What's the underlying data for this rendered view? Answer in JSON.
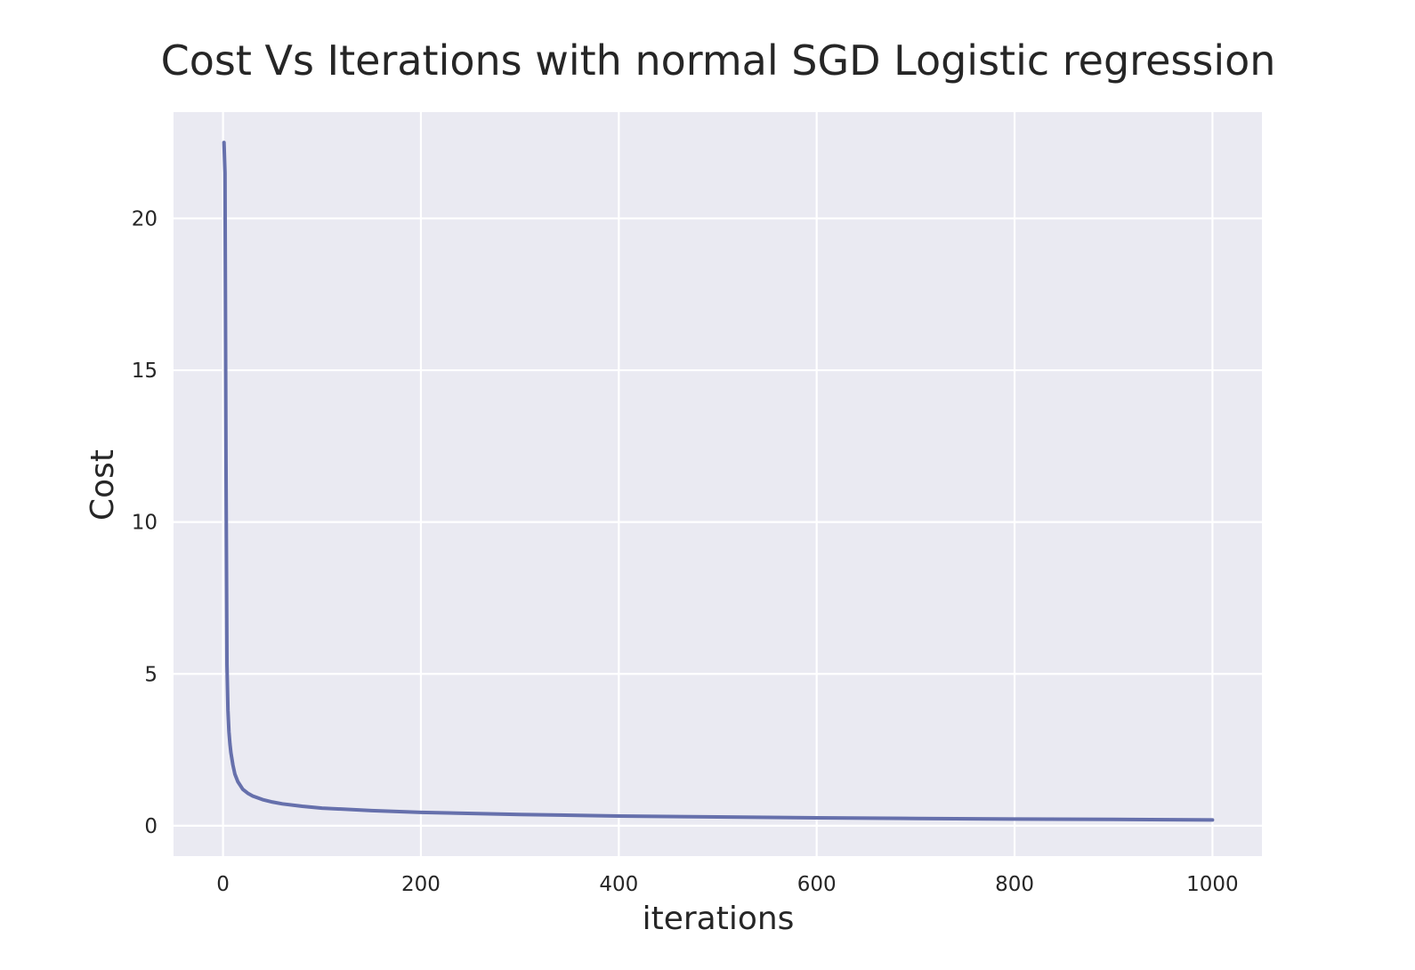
{
  "chart_data": {
    "type": "line",
    "title": "Cost Vs Iterations with normal SGD Logistic regression",
    "xlabel": "iterations",
    "ylabel": "Cost",
    "xlim": [
      -50,
      1050
    ],
    "ylim": [
      -1,
      23.5
    ],
    "xticks": [
      "0",
      "200",
      "400",
      "600",
      "800",
      "1000"
    ],
    "yticks": [
      "0",
      "5",
      "10",
      "15",
      "20"
    ],
    "grid": true,
    "legend": "none",
    "colors": {
      "background": "#eaeaf2",
      "grid": "#ffffff",
      "line": "#6670ac",
      "text": "#262626"
    },
    "series": [
      {
        "x": [
          1,
          2,
          3,
          4,
          5,
          6,
          7,
          8,
          10,
          12,
          15,
          20,
          25,
          30,
          40,
          50,
          60,
          80,
          100,
          150,
          200,
          300,
          400,
          500,
          600,
          700,
          800,
          900,
          1000
        ],
        "values": [
          22.5,
          21.5,
          12.0,
          5.3,
          3.8,
          3.1,
          2.7,
          2.4,
          2.0,
          1.7,
          1.45,
          1.2,
          1.07,
          0.98,
          0.86,
          0.78,
          0.72,
          0.64,
          0.58,
          0.5,
          0.44,
          0.37,
          0.32,
          0.29,
          0.26,
          0.24,
          0.22,
          0.21,
          0.19
        ]
      }
    ]
  }
}
